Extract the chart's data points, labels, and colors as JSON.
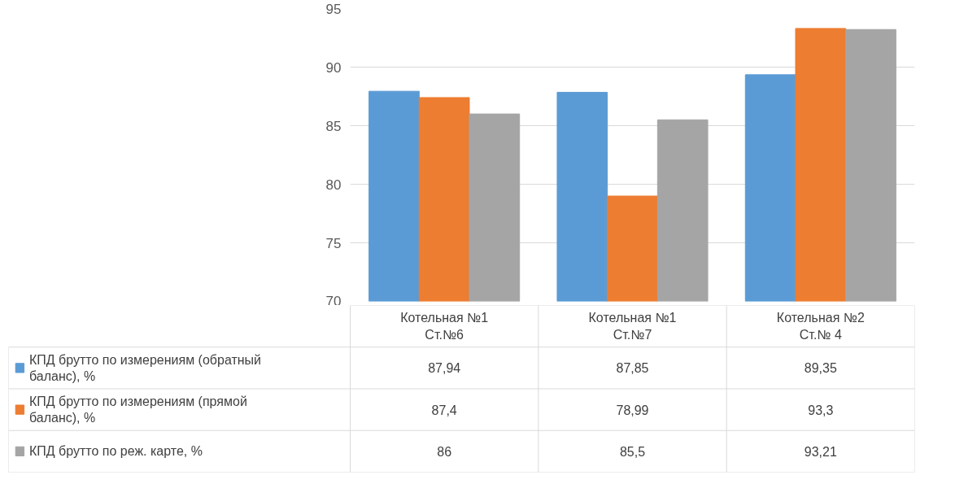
{
  "chart_data": {
    "type": "bar",
    "categories": [
      "Котельная №1 Ст.№6",
      "Котельная №1 Ст.№7",
      "Котельная №2 Ст.№ 4"
    ],
    "series": [
      {
        "name": "КПД брутто по измерениям (обратный баланс), %",
        "color": "#5b9bd5",
        "values": [
          87.94,
          87.85,
          89.35
        ],
        "value_labels": [
          "87,94",
          "87,85",
          "89,35"
        ]
      },
      {
        "name": "КПД брутто по измерениям (прямой баланс), %",
        "color": "#ed7d31",
        "values": [
          87.4,
          78.99,
          93.3
        ],
        "value_labels": [
          "87,4",
          "78,99",
          "93,3"
        ]
      },
      {
        "name": "КПД брутто по реж. карте, %",
        "color": "#a5a5a5",
        "values": [
          86,
          85.5,
          93.21
        ],
        "value_labels": [
          "86",
          "85,5",
          "93,21"
        ]
      }
    ],
    "ylim": [
      70,
      95
    ],
    "yticks": [
      70,
      75,
      80,
      85,
      90,
      95
    ],
    "grid": "y",
    "legend": "bottom"
  }
}
